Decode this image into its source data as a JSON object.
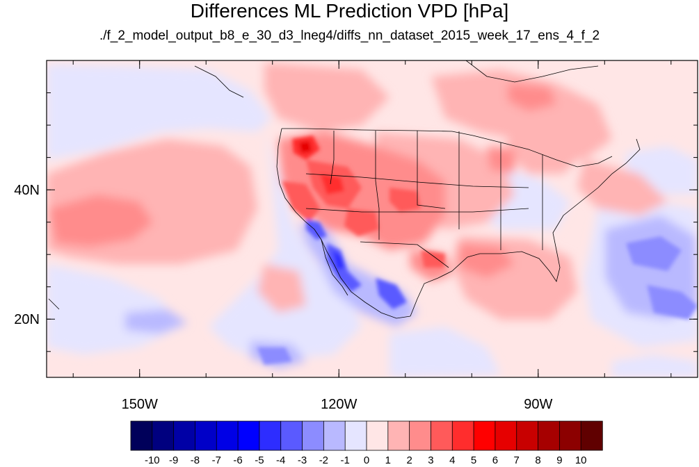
{
  "title": "Differences ML Prediction VPD [hPa]",
  "subtitle": "./f_2_model_output_b8_e_30_d3_lneg4/diffs_nn_dataset_2015_week_17_ens_4_f_2",
  "map": {
    "lon_range": [
      -164,
      -66
    ],
    "lat_range": [
      11,
      60
    ],
    "lon_ticks": [
      {
        "value": -150,
        "label": "150W"
      },
      {
        "value": -120,
        "label": "120W"
      },
      {
        "value": -90,
        "label": "90W"
      }
    ],
    "lat_ticks": [
      {
        "value": 40,
        "label": "40N"
      },
      {
        "value": 20,
        "label": "20N"
      }
    ]
  },
  "colorbar": {
    "labels": [
      "-10",
      "-9",
      "-8",
      "-7",
      "-6",
      "-5",
      "-4",
      "-3",
      "-2",
      "-1",
      "0",
      "1",
      "2",
      "3",
      "4",
      "5",
      "6",
      "7",
      "8",
      "9",
      "10"
    ],
    "colors": [
      "#00005a",
      "#00007f",
      "#0000a6",
      "#0000c8",
      "#0000e6",
      "#0000ff",
      "#2d2dff",
      "#5a5aff",
      "#8c8cff",
      "#b9b9ff",
      "#e5e5ff",
      "#ffe6e6",
      "#ffb4b4",
      "#ff8c8c",
      "#ff5a5a",
      "#ff2d2d",
      "#ff0000",
      "#e60000",
      "#c80000",
      "#a60000",
      "#8c0000",
      "#600000"
    ]
  }
}
